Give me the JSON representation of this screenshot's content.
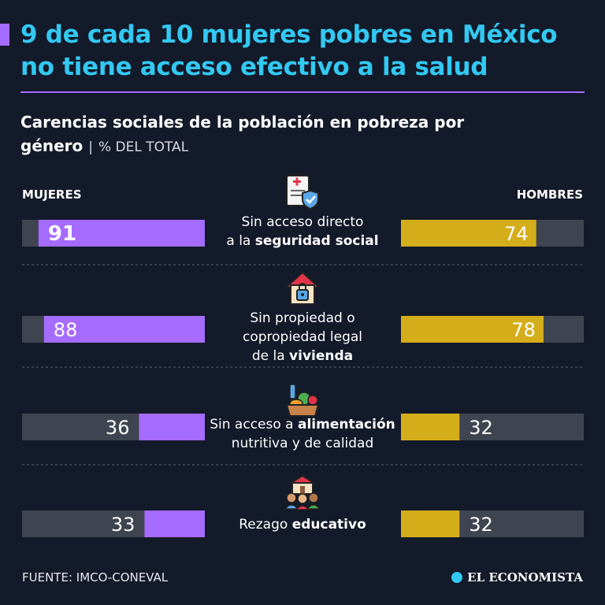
{
  "header": {
    "title_line1": "9 de cada 10 mujeres pobres en México",
    "title_line2": "no tiene acceso efectivo a la salud",
    "subtitle_line1": "Carencias sociales de la población en pobreza por",
    "subtitle_line2": "género",
    "subtitle_sep": "|",
    "subtitle_unit": "% DEL TOTAL"
  },
  "footer": {
    "source": "FUENTE: IMCO-CONEVAL",
    "logo": "EL ECONOMISTA"
  },
  "colors": {
    "mujeres": "#a66bff",
    "hombres": "#d4ad1b",
    "track": "#3f4550",
    "title": "#33c8f2"
  },
  "chart_data": {
    "type": "bar",
    "orientation": "horizontal-butterfly",
    "xlim": [
      0,
      100
    ],
    "series": [
      {
        "name": "MUJERES",
        "values": [
          91,
          88,
          36,
          33
        ]
      },
      {
        "name": "HOMBRES",
        "values": [
          74,
          78,
          32,
          32
        ]
      }
    ],
    "categories": [
      {
        "id": "seguridad",
        "icon": "medical-document-shield-icon",
        "lines": [
          {
            "plain": "Sin acceso directo",
            "bold": ""
          },
          {
            "plain": "a la ",
            "bold": "seguridad social"
          }
        ]
      },
      {
        "id": "vivienda",
        "icon": "house-lock-icon",
        "lines": [
          {
            "plain": "Sin propiedad o",
            "bold": ""
          },
          {
            "plain": "copropiedad legal",
            "bold": ""
          },
          {
            "plain": "de la ",
            "bold": "vivienda"
          }
        ]
      },
      {
        "id": "alimentacion",
        "icon": "food-basket-icon",
        "lines": [
          {
            "plain": "Sin acceso a ",
            "bold": "alimentación"
          },
          {
            "plain": "nutritiva y de calidad",
            "bold": ""
          }
        ]
      },
      {
        "id": "educativo",
        "icon": "school-children-icon",
        "lines": [
          {
            "plain": "Rezago ",
            "bold": "educativo"
          }
        ]
      }
    ]
  }
}
